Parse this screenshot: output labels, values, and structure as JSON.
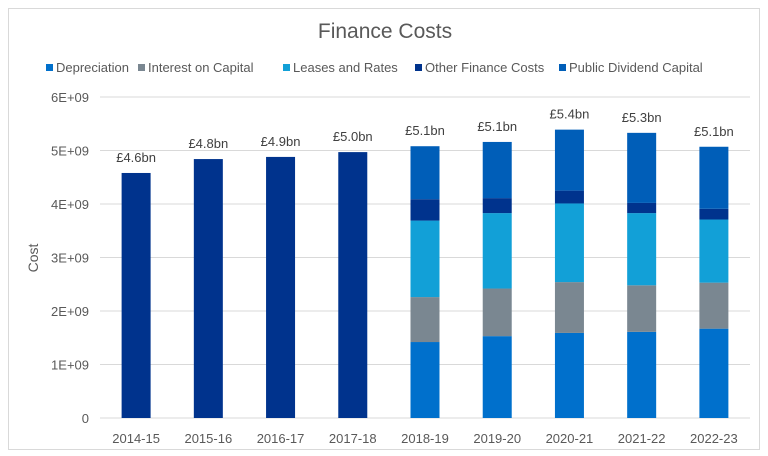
{
  "chart_data": {
    "type": "bar",
    "stacked": true,
    "title": "Finance Costs",
    "xlabel": "",
    "ylabel": "Cost",
    "ylim": [
      0,
      6000000000
    ],
    "yticks": [
      "0",
      "1E+09",
      "2E+09",
      "3E+09",
      "4E+09",
      "5E+09",
      "6E+09"
    ],
    "grid": true,
    "legend_position": "top",
    "categories": [
      "2014-15",
      "2015-16",
      "2016-17",
      "2017-18",
      "2018-19",
      "2019-20",
      "2020-21",
      "2021-22",
      "2022-23"
    ],
    "series": [
      {
        "name": "Depreciation",
        "color": "#0070cc",
        "values": [
          0,
          0,
          0,
          0,
          1420000000,
          1530000000,
          1590000000,
          1610000000,
          1670000000
        ]
      },
      {
        "name": "Interest on Capital",
        "color": "#7a8791",
        "values": [
          0,
          0,
          0,
          0,
          840000000,
          890000000,
          950000000,
          870000000,
          860000000
        ]
      },
      {
        "name": "Leases and Rates",
        "color": "#12a0d7",
        "values": [
          0,
          0,
          0,
          0,
          1430000000,
          1410000000,
          1470000000,
          1350000000,
          1180000000
        ]
      },
      {
        "name": "Other Finance Costs",
        "color": "#00338d",
        "values": [
          4580000000,
          4840000000,
          4880000000,
          4970000000,
          400000000,
          280000000,
          240000000,
          190000000,
          200000000
        ]
      },
      {
        "name": "Public Dividend Capital",
        "color": "#005eb8",
        "values": [
          0,
          0,
          0,
          0,
          990000000,
          1050000000,
          1140000000,
          1310000000,
          1160000000
        ]
      }
    ],
    "data_labels": [
      "£4.6bn",
      "£4.8bn",
      "£4.9bn",
      "£5.0bn",
      "£5.1bn",
      "£5.1bn",
      "£5.4bn",
      "£5.3bn",
      "£5.1bn"
    ]
  }
}
